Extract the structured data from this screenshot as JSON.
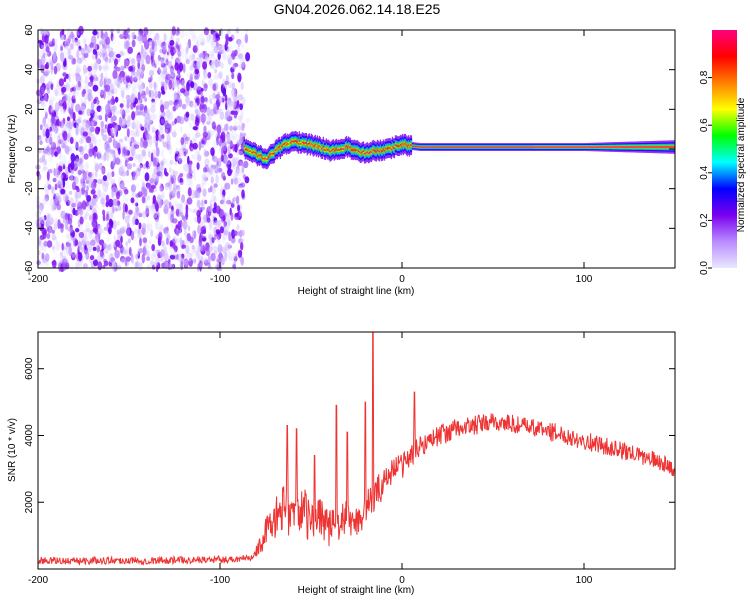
{
  "title": "GN04.2026.062.14.18.E25",
  "colors": {
    "snr_line": "#ee3333",
    "axis": "#000000",
    "background": "#ffffff"
  },
  "chart_data": [
    {
      "type": "heatmap",
      "title": "",
      "xlabel": "Height of straight line (km)",
      "ylabel": "Frequency (Hz)",
      "xlim": [
        -200,
        150
      ],
      "ylim": [
        -60,
        60
      ],
      "xticks": [
        "-200",
        "-100",
        "0",
        "100"
      ],
      "yticks": [
        "60",
        "40",
        "20",
        "0",
        "-20",
        "-40",
        "-60"
      ],
      "colorbar": {
        "label": "Normalized spectral amplitude",
        "range": [
          0,
          1
        ],
        "ticks": [
          "0.0",
          "0.2",
          "0.4",
          "0.6",
          "0.8"
        ],
        "colormap": [
          "#e8e8ff",
          "#b98cff",
          "#7a00ee",
          "#0000ff",
          "#00ffff",
          "#00ff00",
          "#ffff00",
          "#ff7f00",
          "#ff0000",
          "#ff0080"
        ]
      },
      "regions": [
        {
          "name": "noise",
          "x_range": [
            -200,
            -87
          ],
          "freq_range": [
            -60,
            60
          ],
          "amplitude_range": [
            0.0,
            0.25
          ]
        },
        {
          "name": "signal",
          "x_range": [
            -87,
            150
          ],
          "freq_band_halfwidth_hz": [
            5,
            2
          ],
          "peak_amplitude": 1.0
        }
      ],
      "signal_track": {
        "x": [
          -88,
          -80,
          -75,
          -70,
          -65,
          -60,
          -55,
          -50,
          -45,
          -40,
          -35,
          -30,
          -25,
          -20,
          -15,
          -10,
          -5,
          0,
          10,
          50,
          100,
          150
        ],
        "freq": [
          1,
          -3,
          -5,
          -1,
          2,
          4,
          3,
          2,
          1,
          -1,
          0,
          1,
          -1,
          -2,
          -1,
          -1,
          1,
          2,
          1,
          1,
          1,
          1
        ]
      }
    },
    {
      "type": "line",
      "title": "",
      "xlabel": "Height of straight line (km)",
      "ylabel": "SNR (10 * v/v)",
      "xlim": [
        -200,
        150
      ],
      "ylim": [
        0,
        7100
      ],
      "xticks": [
        "-200",
        "-100",
        "0",
        "100"
      ],
      "yticks": [
        "2000",
        "4000",
        "6000"
      ],
      "series": [
        {
          "name": "SNR",
          "x": [
            -200,
            -180,
            -160,
            -140,
            -120,
            -100,
            -90,
            -85,
            -80,
            -77,
            -75,
            -70,
            -65,
            -60,
            -55,
            -50,
            -45,
            -40,
            -35,
            -30,
            -25,
            -20,
            -15,
            -10,
            -5,
            0,
            5,
            10,
            20,
            30,
            40,
            50,
            60,
            70,
            80,
            90,
            100,
            110,
            120,
            130,
            140,
            150
          ],
          "values": [
            250,
            240,
            260,
            250,
            270,
            280,
            300,
            380,
            500,
            800,
            1100,
            1500,
            1800,
            1600,
            1900,
            1300,
            1700,
            1200,
            1400,
            1500,
            1400,
            1800,
            2200,
            2600,
            3000,
            3100,
            3400,
            3700,
            4000,
            4200,
            4300,
            4400,
            4350,
            4250,
            4150,
            4000,
            3850,
            3700,
            3550,
            3400,
            3250,
            3000
          ],
          "noise": [
            110,
            110,
            110,
            110,
            110,
            110,
            110,
            140,
            220,
            320,
            400,
            600,
            700,
            700,
            700,
            650,
            650,
            600,
            600,
            550,
            500,
            500,
            500,
            450,
            400,
            400,
            350,
            330,
            320,
            310,
            300,
            290,
            290,
            280,
            280,
            280,
            270,
            270,
            260,
            260,
            250,
            250
          ]
        }
      ],
      "spikes": [
        {
          "x": -63,
          "value": 4300
        },
        {
          "x": -58,
          "value": 4200
        },
        {
          "x": -48,
          "value": 3400
        },
        {
          "x": -36,
          "value": 4900
        },
        {
          "x": -30,
          "value": 4100
        },
        {
          "x": -20,
          "value": 5000
        },
        {
          "x": -16,
          "value": 7100
        },
        {
          "x": 7,
          "value": 5300
        }
      ]
    }
  ]
}
